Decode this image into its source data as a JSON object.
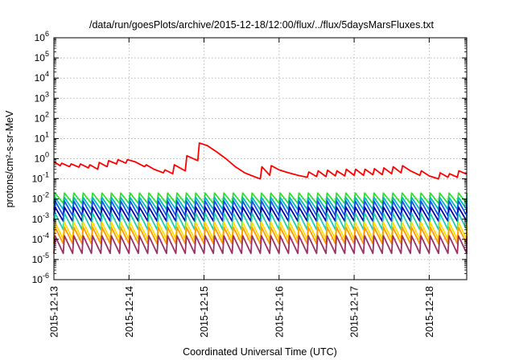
{
  "chart_data": {
    "type": "line",
    "title": "/data/run/goesPlots/archive/2015-12-18/12:00/flux/../flux/5daysMarsFluxes.txt",
    "xlabel": "Coordinated Universal Time (UTC)",
    "ylabel": "protons/cm²-s-sr-MeV",
    "yscale": "log",
    "ylim": [
      1e-06,
      1000000.0
    ],
    "xlim": [
      "2015-12-13",
      "2015-12-18 12:00"
    ],
    "grid": true,
    "legend": "none",
    "x_ticks": [
      "2015-12-13",
      "2015-12-14",
      "2015-12-15",
      "2015-12-16",
      "2015-12-17",
      "2015-12-18"
    ],
    "y_ticks": [
      {
        "base": "10",
        "exp": "-6"
      },
      {
        "base": "10",
        "exp": "-5"
      },
      {
        "base": "10",
        "exp": "-4"
      },
      {
        "base": "10",
        "exp": "-3"
      },
      {
        "base": "10",
        "exp": "-2"
      },
      {
        "base": "10",
        "exp": "-1"
      },
      {
        "base": "10",
        "exp": "0"
      },
      {
        "base": "10",
        "exp": "1"
      },
      {
        "base": "10",
        "exp": "2"
      },
      {
        "base": "10",
        "exp": "3"
      },
      {
        "base": "10",
        "exp": "4"
      },
      {
        "base": "10",
        "exp": "5"
      },
      {
        "base": "10",
        "exp": "6"
      }
    ],
    "series": [
      {
        "color": "#ff0000",
        "x": [
          "2015-12-13 00:00",
          "2015-12-13 02:00",
          "2015-12-13 02:30",
          "2015-12-13 05:00",
          "2015-12-13 05:30",
          "2015-12-13 08:00",
          "2015-12-13 08:30",
          "2015-12-13 11:00",
          "2015-12-13 11:30",
          "2015-12-13 14:00",
          "2015-12-13 14:30",
          "2015-12-13 17:00",
          "2015-12-13 17:30",
          "2015-12-13 20:00",
          "2015-12-13 20:30",
          "2015-12-13 23:00",
          "2015-12-13 23:30",
          "2015-12-14 02:00",
          "2015-12-14 05:00",
          "2015-12-14 05:30",
          "2015-12-14 08:00",
          "2015-12-14 11:00",
          "2015-12-14 11:30",
          "2015-12-14 14:00",
          "2015-12-14 14:30",
          "2015-12-14 18:00",
          "2015-12-14 18:30",
          "2015-12-14 22:00",
          "2015-12-14 22:30",
          "2015-12-15 01:00",
          "2015-12-15 04:00",
          "2015-12-15 07:00",
          "2015-12-15 10:00",
          "2015-12-15 13:00",
          "2015-12-15 16:00",
          "2015-12-15 18:00",
          "2015-12-15 18:30",
          "2015-12-15 21:00",
          "2015-12-15 21:30",
          "2015-12-16 00:00",
          "2015-12-16 03:00",
          "2015-12-16 06:00",
          "2015-12-16 09:00",
          "2015-12-16 09:30",
          "2015-12-16 12:00",
          "2015-12-16 12:30",
          "2015-12-16 15:00",
          "2015-12-16 15:30",
          "2015-12-16 18:00",
          "2015-12-16 18:30",
          "2015-12-16 21:00",
          "2015-12-16 21:30",
          "2015-12-17 00:00",
          "2015-12-17 00:30",
          "2015-12-17 03:00",
          "2015-12-17 03:30",
          "2015-12-17 06:00",
          "2015-12-17 06:30",
          "2015-12-17 09:00",
          "2015-12-17 09:30",
          "2015-12-17 12:00",
          "2015-12-17 12:30",
          "2015-12-17 15:00",
          "2015-12-17 15:30",
          "2015-12-17 18:00",
          "2015-12-17 21:00",
          "2015-12-17 21:30",
          "2015-12-18 00:00",
          "2015-12-18 03:00",
          "2015-12-18 03:30",
          "2015-12-18 06:00",
          "2015-12-18 06:30",
          "2015-12-18 09:00",
          "2015-12-18 09:30",
          "2015-12-18 12:00"
        ],
        "y": [
          0.7,
          0.45,
          0.6,
          0.4,
          0.55,
          0.38,
          0.55,
          0.35,
          0.5,
          0.3,
          0.65,
          0.4,
          0.8,
          0.55,
          0.9,
          0.6,
          0.9,
          0.7,
          0.4,
          0.5,
          0.3,
          0.2,
          0.28,
          0.18,
          0.5,
          0.25,
          1.4,
          0.8,
          6.0,
          4.5,
          2.2,
          1.0,
          0.4,
          0.2,
          0.13,
          0.1,
          0.4,
          0.15,
          0.45,
          0.28,
          0.2,
          0.15,
          0.12,
          0.22,
          0.13,
          0.25,
          0.13,
          0.27,
          0.14,
          0.25,
          0.14,
          0.3,
          0.15,
          0.3,
          0.15,
          0.3,
          0.16,
          0.32,
          0.16,
          0.35,
          0.18,
          0.4,
          0.2,
          0.45,
          0.25,
          0.15,
          0.25,
          0.14,
          0.1,
          0.2,
          0.12,
          0.18,
          0.12,
          0.25,
          0.17
        ]
      },
      {
        "color": "#33dd33",
        "pattern": {
          "x_start": "2015-12-13",
          "x_end": "2015-12-18 12:00",
          "period_hours": 3,
          "peak": 0.02,
          "trough": 0.006
        }
      },
      {
        "color": "#00bbbb",
        "pattern": {
          "x_start": "2015-12-13",
          "x_end": "2015-12-18 12:00",
          "period_hours": 3,
          "peak": 0.012,
          "trough": 0.003
        }
      },
      {
        "color": "#1155ee",
        "pattern": {
          "x_start": "2015-12-13",
          "x_end": "2015-12-18 12:00",
          "period_hours": 3,
          "peak": 0.008,
          "trough": 0.0015
        }
      },
      {
        "color": "#0000aa",
        "pattern": {
          "x_start": "2015-12-13",
          "x_end": "2015-12-18 12:00",
          "period_hours": 3,
          "peak": 0.004,
          "trough": 0.0008
        }
      },
      {
        "color": "#22ccaa",
        "pattern": {
          "x_start": "2015-12-13",
          "x_end": "2015-12-18 12:00",
          "period_hours": 3,
          "peak": 0.002,
          "trough": 0.0003
        }
      },
      {
        "color": "#ffdd00",
        "pattern": {
          "x_start": "2015-12-13",
          "x_end": "2015-12-18 12:00",
          "period_hours": 3,
          "peak": 0.0007,
          "trough": 0.0001
        }
      },
      {
        "color": "#ff9900",
        "pattern": {
          "x_start": "2015-12-13",
          "x_end": "2015-12-18 12:00",
          "period_hours": 3,
          "peak": 0.0004,
          "trough": 6e-05
        }
      },
      {
        "color": "#993366",
        "pattern": {
          "x_start": "2015-12-13",
          "x_end": "2015-12-18 12:00",
          "period_hours": 3,
          "peak": 0.00015,
          "trough": 2e-05
        }
      }
    ]
  }
}
